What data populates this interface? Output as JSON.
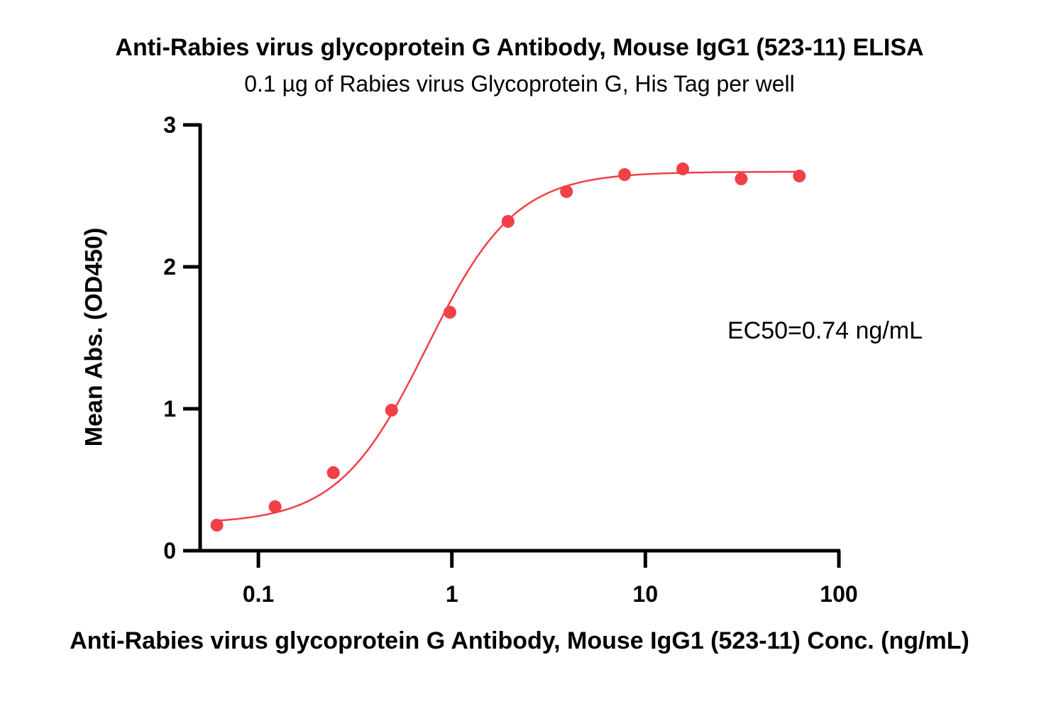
{
  "chart_data": {
    "type": "scatter",
    "title": "Anti-Rabies virus glycoprotein G Antibody, Mouse IgG1 (523-11) ELISA",
    "subtitle": "0.1 µg of Rabies virus Glycoprotein G, His Tag per well",
    "xlabel": "Anti-Rabies virus glycoprotein G Antibody, Mouse IgG1 (523-11) Conc. (ng/mL)",
    "ylabel": "Mean Abs. (OD450)",
    "x_scale": "log",
    "xlim": [
      0.05,
      100
    ],
    "ylim": [
      0,
      3
    ],
    "x_ticks": [
      0.1,
      1,
      10,
      100
    ],
    "x_tick_labels": [
      "0.1",
      "1",
      "10",
      "100"
    ],
    "y_ticks": [
      0,
      1,
      2,
      3
    ],
    "y_tick_labels": [
      "0",
      "1",
      "2",
      "3"
    ],
    "grid": false,
    "color": "#f04048",
    "annotation": "EC50=0.74 ng/mL",
    "series": [
      {
        "points": [
          {
            "x": 0.061,
            "y": 0.18
          },
          {
            "x": 0.122,
            "y": 0.31
          },
          {
            "x": 0.244,
            "y": 0.55
          },
          {
            "x": 0.488,
            "y": 0.99
          },
          {
            "x": 0.977,
            "y": 1.68
          },
          {
            "x": 1.95,
            "y": 2.32
          },
          {
            "x": 3.91,
            "y": 2.53
          },
          {
            "x": 7.81,
            "y": 2.65
          },
          {
            "x": 15.6,
            "y": 2.69
          },
          {
            "x": 31.3,
            "y": 2.62
          },
          {
            "x": 62.5,
            "y": 2.64
          }
        ],
        "fit": {
          "model": "4PL",
          "bottom": 0.19,
          "top": 2.67,
          "ec50": 0.74,
          "hill": 1.9
        }
      }
    ]
  }
}
